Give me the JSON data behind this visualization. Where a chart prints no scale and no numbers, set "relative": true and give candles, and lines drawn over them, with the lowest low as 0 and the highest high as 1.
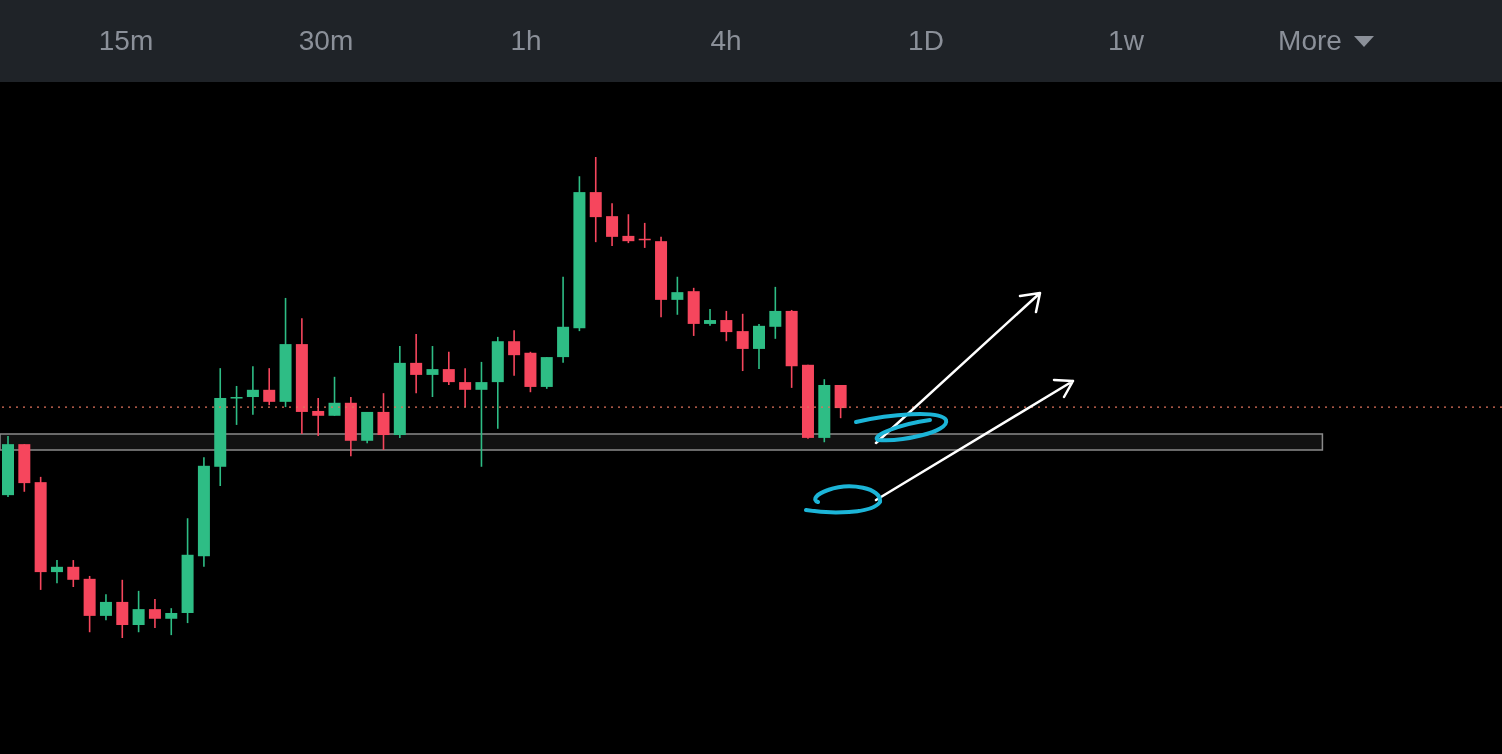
{
  "chart_data": {
    "type": "candlestick",
    "relative": true,
    "annotations": [
      "15m",
      "30m",
      "1h",
      "4h",
      "1D",
      "1w",
      "More"
    ],
    "categories": [
      null,
      null,
      null,
      null,
      null,
      null,
      null,
      null,
      null,
      null,
      null,
      null,
      null,
      null,
      null,
      null,
      null,
      null,
      null,
      null,
      null,
      null,
      null,
      null,
      null,
      null,
      null,
      null,
      null,
      null,
      null,
      null,
      null,
      null,
      null,
      null,
      null,
      null,
      null,
      null,
      null,
      null,
      null,
      null,
      null,
      null,
      null,
      null,
      null,
      null,
      null,
      null
    ],
    "ohlc": [
      [
        0.297,
        0.42,
        0.293,
        0.403
      ],
      [
        0.403,
        0.403,
        0.304,
        0.322
      ],
      [
        0.324,
        0.335,
        0.1,
        0.137
      ],
      [
        0.137,
        0.162,
        0.114,
        0.148
      ],
      [
        0.148,
        0.162,
        0.106,
        0.121
      ],
      [
        0.123,
        0.129,
        0.012,
        0.046
      ],
      [
        0.046,
        0.091,
        0.037,
        0.075
      ],
      [
        0.075,
        0.121,
        0.0,
        0.027
      ],
      [
        0.027,
        0.098,
        0.012,
        0.06
      ],
      [
        0.06,
        0.081,
        0.021,
        0.04
      ],
      [
        0.04,
        0.062,
        0.006,
        0.052
      ],
      [
        0.052,
        0.249,
        0.031,
        0.173
      ],
      [
        0.17,
        0.376,
        0.148,
        0.358
      ],
      [
        0.356,
        0.561,
        0.316,
        0.499
      ],
      [
        0.499,
        0.524,
        0.443,
        0.501
      ],
      [
        0.501,
        0.565,
        0.464,
        0.516
      ],
      [
        0.516,
        0.561,
        0.484,
        0.491
      ],
      [
        0.491,
        0.707,
        0.48,
        0.611
      ],
      [
        0.611,
        0.665,
        0.424,
        0.47
      ],
      [
        0.472,
        0.499,
        0.42,
        0.462
      ],
      [
        0.462,
        0.543,
        0.462,
        0.489
      ],
      [
        0.489,
        0.501,
        0.378,
        0.41
      ],
      [
        0.41,
        0.47,
        0.405,
        0.47
      ],
      [
        0.47,
        0.509,
        0.391,
        0.422
      ],
      [
        0.422,
        0.607,
        0.416,
        0.572
      ],
      [
        0.572,
        0.632,
        0.509,
        0.547
      ],
      [
        0.547,
        0.607,
        0.501,
        0.559
      ],
      [
        0.559,
        0.595,
        0.526,
        0.532
      ],
      [
        0.532,
        0.561,
        0.48,
        0.516
      ],
      [
        0.516,
        0.574,
        0.356,
        0.532
      ],
      [
        0.532,
        0.626,
        0.435,
        0.617
      ],
      [
        0.617,
        0.64,
        0.545,
        0.588
      ],
      [
        0.593,
        0.595,
        0.511,
        0.522
      ],
      [
        0.522,
        0.584,
        0.518,
        0.584
      ],
      [
        0.584,
        0.751,
        0.572,
        0.647
      ],
      [
        0.644,
        0.96,
        0.638,
        0.927
      ],
      [
        0.927,
        1.0,
        0.823,
        0.875
      ],
      [
        0.877,
        0.904,
        0.815,
        0.834
      ],
      [
        0.836,
        0.881,
        0.821,
        0.825
      ],
      [
        0.83,
        0.863,
        0.811,
        0.827
      ],
      [
        0.825,
        0.834,
        0.667,
        0.703
      ],
      [
        0.703,
        0.751,
        0.672,
        0.719
      ],
      [
        0.721,
        0.728,
        0.628,
        0.653
      ],
      [
        0.653,
        0.684,
        0.649,
        0.661
      ],
      [
        0.661,
        0.68,
        0.617,
        0.636
      ],
      [
        0.638,
        0.674,
        0.555,
        0.601
      ],
      [
        0.601,
        0.653,
        0.559,
        0.649
      ],
      [
        0.647,
        0.73,
        0.622,
        0.68
      ],
      [
        0.68,
        0.682,
        0.52,
        0.565
      ],
      [
        0.568,
        0.568,
        0.414,
        0.416
      ],
      [
        0.416,
        0.538,
        0.407,
        0.526
      ],
      [
        0.526,
        0.526,
        0.457,
        0.478
      ]
    ],
    "colors": [
      "#2ebd85",
      "#f6465d",
      "#f6465d",
      "#2ebd85",
      "#f6465d",
      "#f6465d",
      "#2ebd85",
      "#f6465d",
      "#2ebd85",
      "#f6465d",
      "#2ebd85",
      "#2ebd85",
      "#2ebd85",
      "#2ebd85",
      "#2ebd85",
      "#2ebd85",
      "#f6465d",
      "#2ebd85",
      "#f6465d",
      "#f6465d",
      "#2ebd85",
      "#f6465d",
      "#2ebd85",
      "#f6465d",
      "#2ebd85",
      "#f6465d",
      "#2ebd85",
      "#f6465d",
      "#f6465d",
      "#2ebd85",
      "#2ebd85",
      "#f6465d",
      "#f6465d",
      "#2ebd85",
      "#2ebd85",
      "#2ebd85",
      "#f6465d",
      "#f6465d",
      "#f6465d",
      "#f6465d",
      "#f6465d",
      "#2ebd85",
      "#f6465d",
      "#2ebd85",
      "#f6465d",
      "#f6465d",
      "#2ebd85",
      "#2ebd85",
      "#f6465d",
      "#f6465d",
      "#2ebd85",
      "#f6465d"
    ],
    "ref_lines": [
      {
        "axis": "y",
        "value": 0.48,
        "color": "#e0735c",
        "line_style": "dotted"
      }
    ],
    "bands": [
      {
        "axis": "y",
        "from": 0.391,
        "to": 0.424,
        "color": "#8a8a8a"
      }
    ]
  }
}
